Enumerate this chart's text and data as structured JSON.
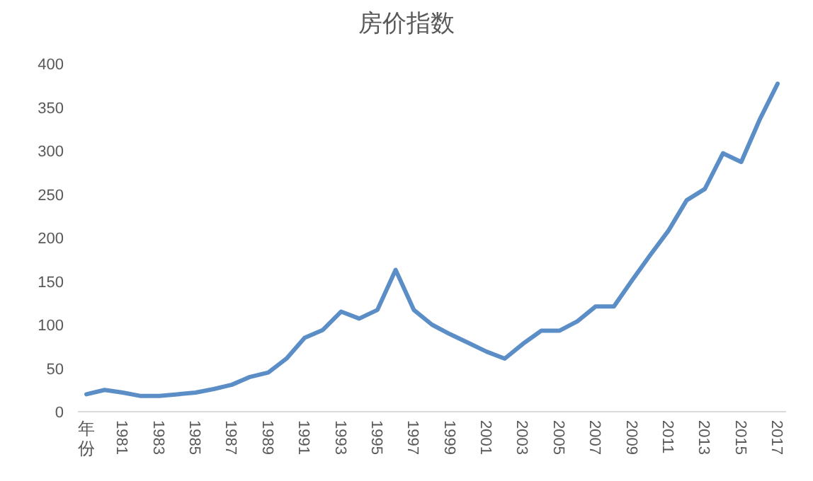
{
  "chart_data": {
    "type": "line",
    "title": "房价指数",
    "categories": [
      "年份",
      null,
      "1981",
      null,
      "1983",
      null,
      "1985",
      null,
      "1987",
      null,
      "1989",
      null,
      "1991",
      null,
      "1993",
      null,
      "1995",
      null,
      "1997",
      null,
      "1999",
      null,
      "2001",
      null,
      "2003",
      null,
      "2005",
      null,
      "2007",
      null,
      "2009",
      null,
      "2011",
      null,
      "2013",
      null,
      "2015",
      null,
      "2017"
    ],
    "series": [
      {
        "color": "#5b8ec6",
        "values": [
          20,
          25,
          22,
          18,
          18,
          20,
          22,
          26,
          31,
          40,
          45,
          61,
          85,
          94,
          115,
          107,
          117,
          163,
          117,
          100,
          89,
          79,
          69,
          61,
          78,
          93,
          93,
          104,
          121,
          121,
          151,
          180,
          208,
          243,
          256,
          297,
          287,
          335,
          377
        ]
      }
    ],
    "ylim": [
      0,
      400
    ],
    "yticks": [
      0,
      50,
      100,
      150,
      200,
      250,
      300,
      350,
      400
    ],
    "line_style": "solid"
  }
}
